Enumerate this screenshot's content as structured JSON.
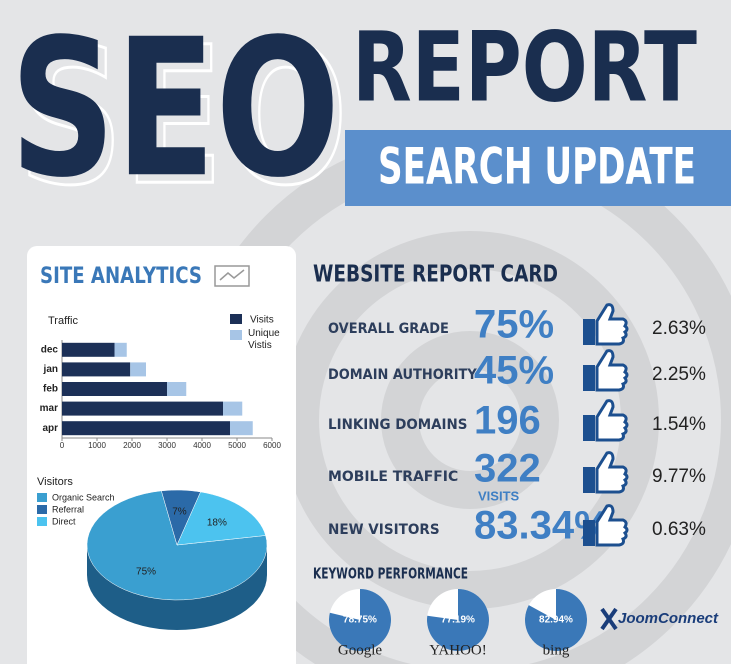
{
  "header": {
    "title": "SEO",
    "subtitle": "REPORT",
    "banner": "SEARCH UPDATE"
  },
  "site_analytics": {
    "title": "SITE ANALYTICS"
  },
  "report_card": {
    "title": "WEBSITE REPORT CARD",
    "rows": [
      {
        "label": "OVERALL GRADE",
        "value": "75%",
        "change": "2.63%"
      },
      {
        "label": "DOMAIN AUTHORITY",
        "value": "45%",
        "change": "2.25%"
      },
      {
        "label": "LINKING DOMAINS",
        "value": "196",
        "change": "1.54%"
      },
      {
        "label": "MOBILE TRAFFIC",
        "value": "322",
        "note": "VISITS",
        "change": "9.77%"
      },
      {
        "label": "NEW VISITORS",
        "value": "83.34%",
        "change": "0.63%"
      }
    ]
  },
  "keyword_performance": {
    "title": "KEYWORD PERFORMANCE"
  },
  "brand": "JoomConnect",
  "chart_data": [
    {
      "type": "bar",
      "orientation": "horizontal",
      "stacked": true,
      "title": "Traffic",
      "categories": [
        "dec",
        "jan",
        "feb",
        "mar",
        "apr"
      ],
      "series": [
        {
          "name": "Visits",
          "color": "#1c3057",
          "values": [
            1500,
            1950,
            3000,
            4600,
            4800
          ]
        },
        {
          "name": "Unique Vistis",
          "color": "#a7c5e6",
          "values": [
            350,
            450,
            550,
            550,
            650
          ]
        }
      ],
      "xlim": [
        0,
        6000
      ],
      "xticks": [
        0,
        1000,
        2000,
        3000,
        4000,
        5000,
        6000
      ]
    },
    {
      "type": "pie",
      "title": "Visitors",
      "categories": [
        "Organic Search",
        "Referral",
        "Direct"
      ],
      "values": [
        75,
        7,
        18
      ],
      "value_labels": [
        "75%",
        "7%",
        "18%"
      ],
      "colors": [
        "#3a9fd0",
        "#2b6aa8",
        "#4cc3ef"
      ]
    },
    {
      "type": "gauge",
      "categories": [
        "Google"
      ],
      "values": [
        78.75
      ],
      "value_labels": [
        "78.75%"
      ],
      "color": "#3a78b8"
    },
    {
      "type": "gauge",
      "categories": [
        "YAHOO!"
      ],
      "values": [
        77.19
      ],
      "value_labels": [
        "77.19%"
      ],
      "color": "#3a78b8"
    },
    {
      "type": "gauge",
      "categories": [
        "bing"
      ],
      "values": [
        82.94
      ],
      "value_labels": [
        "82.94%"
      ],
      "color": "#3a78b8"
    }
  ]
}
